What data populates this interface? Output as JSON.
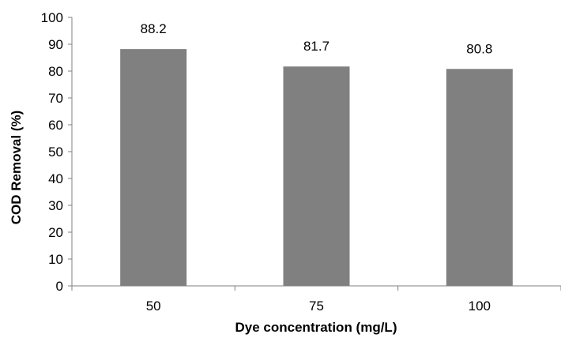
{
  "chart_data": {
    "type": "bar",
    "categories": [
      "50",
      "75",
      "100"
    ],
    "values": [
      88.2,
      81.7,
      80.8
    ],
    "data_labels": [
      "88.2",
      "81.7",
      "80.8"
    ],
    "title": "",
    "xlabel": "Dye concentration (mg/L)",
    "ylabel": "COD Removal (%)",
    "ylim": [
      0,
      100
    ],
    "yticks": [
      0,
      10,
      20,
      30,
      40,
      50,
      60,
      70,
      80,
      90,
      100
    ],
    "bar_color": "#808080",
    "grid": false,
    "legend": "none"
  }
}
